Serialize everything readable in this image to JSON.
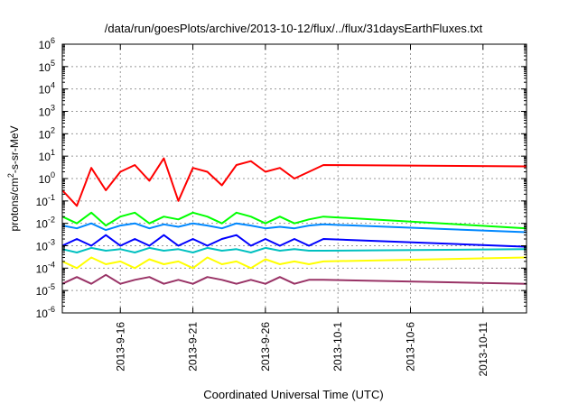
{
  "chart_data": {
    "type": "line",
    "title": "/data/run/goesPlots/archive/2013-10-12/flux/../flux/31daysEarthFluxes.txt",
    "xlabel": "Coordinated Universal Time (UTC)",
    "ylabel_prefix": "protons/cm",
    "ylabel_sup": "2",
    "ylabel_suffix": "-s-sr-MeV",
    "x_range": [
      "2013-09-12",
      "2013-10-14"
    ],
    "x_ticks": [
      {
        "date": "2013-09-16",
        "label": "2013-9-16"
      },
      {
        "date": "2013-09-21",
        "label": "2013-9-21"
      },
      {
        "date": "2013-09-26",
        "label": "2013-9-26"
      },
      {
        "date": "2013-10-01",
        "label": "2013-10-1"
      },
      {
        "date": "2013-10-06",
        "label": "2013-10-6"
      },
      {
        "date": "2013-10-11",
        "label": "2013-10-11"
      }
    ],
    "y_scale": "log",
    "ylim": [
      1e-06,
      1000000.0
    ],
    "y_ticks": [
      {
        "value": 1e-06,
        "base": "10",
        "exp": "-6"
      },
      {
        "value": 1e-05,
        "base": "10",
        "exp": "-5"
      },
      {
        "value": 0.0001,
        "base": "10",
        "exp": "-4"
      },
      {
        "value": 0.001,
        "base": "10",
        "exp": "-3"
      },
      {
        "value": 0.01,
        "base": "10",
        "exp": "-2"
      },
      {
        "value": 0.1,
        "base": "10",
        "exp": "-1"
      },
      {
        "value": 1,
        "base": "10",
        "exp": "0"
      },
      {
        "value": 10,
        "base": "10",
        "exp": "1"
      },
      {
        "value": 100,
        "base": "10",
        "exp": "2"
      },
      {
        "value": 1000,
        "base": "10",
        "exp": "3"
      },
      {
        "value": 10000,
        "base": "10",
        "exp": "4"
      },
      {
        "value": 100000,
        "base": "10",
        "exp": "5"
      },
      {
        "value": 1000000,
        "base": "10",
        "exp": "6"
      }
    ],
    "grid": true,
    "legend": "none",
    "series": [
      {
        "color": "#ff0000",
        "x": [
          "2013-09-12",
          "2013-09-13",
          "2013-09-14",
          "2013-09-15",
          "2013-09-16",
          "2013-09-17",
          "2013-09-18",
          "2013-09-19",
          "2013-09-20",
          "2013-09-21",
          "2013-09-22",
          "2013-09-23",
          "2013-09-24",
          "2013-09-25",
          "2013-09-26",
          "2013-09-27",
          "2013-09-28",
          "2013-09-29",
          "2013-09-30",
          "2013-10-14"
        ],
        "y": [
          0.3,
          0.06,
          3,
          0.3,
          2,
          4,
          0.8,
          8,
          0.1,
          3,
          2,
          0.5,
          4,
          6,
          2,
          3,
          1,
          2,
          4,
          3.5
        ]
      },
      {
        "color": "#00ff00",
        "x": [
          "2013-09-12",
          "2013-09-13",
          "2013-09-14",
          "2013-09-15",
          "2013-09-16",
          "2013-09-17",
          "2013-09-18",
          "2013-09-19",
          "2013-09-20",
          "2013-09-21",
          "2013-09-22",
          "2013-09-23",
          "2013-09-24",
          "2013-09-25",
          "2013-09-26",
          "2013-09-27",
          "2013-09-28",
          "2013-09-29",
          "2013-09-30",
          "2013-10-14"
        ],
        "y": [
          0.02,
          0.01,
          0.03,
          0.008,
          0.02,
          0.03,
          0.01,
          0.02,
          0.015,
          0.03,
          0.02,
          0.01,
          0.03,
          0.02,
          0.01,
          0.02,
          0.01,
          0.015,
          0.02,
          0.006
        ]
      },
      {
        "color": "#0088ff",
        "x": [
          "2013-09-12",
          "2013-09-13",
          "2013-09-14",
          "2013-09-15",
          "2013-09-16",
          "2013-09-17",
          "2013-09-18",
          "2013-09-19",
          "2013-09-20",
          "2013-09-21",
          "2013-09-22",
          "2013-09-23",
          "2013-09-24",
          "2013-09-25",
          "2013-09-26",
          "2013-09-27",
          "2013-09-28",
          "2013-09-29",
          "2013-09-30",
          "2013-10-14"
        ],
        "y": [
          0.008,
          0.006,
          0.01,
          0.005,
          0.008,
          0.01,
          0.006,
          0.009,
          0.007,
          0.01,
          0.008,
          0.006,
          0.01,
          0.008,
          0.006,
          0.007,
          0.006,
          0.008,
          0.009,
          0.004
        ]
      },
      {
        "color": "#0000ff",
        "x": [
          "2013-09-12",
          "2013-09-13",
          "2013-09-14",
          "2013-09-15",
          "2013-09-16",
          "2013-09-17",
          "2013-09-18",
          "2013-09-19",
          "2013-09-20",
          "2013-09-21",
          "2013-09-22",
          "2013-09-23",
          "2013-09-24",
          "2013-09-25",
          "2013-09-26",
          "2013-09-27",
          "2013-09-28",
          "2013-09-29",
          "2013-09-30",
          "2013-10-14"
        ],
        "y": [
          0.001,
          0.002,
          0.001,
          0.003,
          0.001,
          0.002,
          0.001,
          0.003,
          0.001,
          0.002,
          0.001,
          0.002,
          0.003,
          0.001,
          0.002,
          0.001,
          0.002,
          0.001,
          0.002,
          0.0009
        ]
      },
      {
        "color": "#00c0c0",
        "x": [
          "2013-09-12",
          "2013-09-13",
          "2013-09-14",
          "2013-09-15",
          "2013-09-16",
          "2013-09-17",
          "2013-09-18",
          "2013-09-19",
          "2013-09-20",
          "2013-09-21",
          "2013-09-22",
          "2013-09-23",
          "2013-09-24",
          "2013-09-25",
          "2013-09-26",
          "2013-09-27",
          "2013-09-28",
          "2013-09-29",
          "2013-09-30",
          "2013-10-14"
        ],
        "y": [
          0.0007,
          0.0005,
          0.0008,
          0.0006,
          0.0007,
          0.0005,
          0.0008,
          0.0006,
          0.0007,
          0.0005,
          0.0008,
          0.0006,
          0.0007,
          0.0005,
          0.0008,
          0.0006,
          0.0007,
          0.0006,
          0.0006,
          0.0007
        ]
      },
      {
        "color": "#ffff00",
        "x": [
          "2013-09-12",
          "2013-09-13",
          "2013-09-14",
          "2013-09-15",
          "2013-09-16",
          "2013-09-17",
          "2013-09-18",
          "2013-09-19",
          "2013-09-20",
          "2013-09-21",
          "2013-09-22",
          "2013-09-23",
          "2013-09-24",
          "2013-09-25",
          "2013-09-26",
          "2013-09-27",
          "2013-09-28",
          "2013-09-29",
          "2013-09-30",
          "2013-10-14"
        ],
        "y": [
          0.0002,
          0.0001,
          0.0003,
          0.00015,
          0.0002,
          0.0001,
          0.00025,
          0.00015,
          0.0002,
          0.0001,
          0.0003,
          0.00015,
          0.0002,
          0.0001,
          0.00025,
          0.00015,
          0.0002,
          0.00015,
          0.0002,
          0.0003
        ]
      },
      {
        "color": "#993366",
        "x": [
          "2013-09-12",
          "2013-09-13",
          "2013-09-14",
          "2013-09-15",
          "2013-09-16",
          "2013-09-17",
          "2013-09-18",
          "2013-09-19",
          "2013-09-20",
          "2013-09-21",
          "2013-09-22",
          "2013-09-23",
          "2013-09-24",
          "2013-09-25",
          "2013-09-26",
          "2013-09-27",
          "2013-09-28",
          "2013-09-29",
          "2013-09-30",
          "2013-10-14"
        ],
        "y": [
          2e-05,
          4e-05,
          2e-05,
          5e-05,
          2e-05,
          3e-05,
          4e-05,
          2e-05,
          3e-05,
          2e-05,
          4e-05,
          3e-05,
          2e-05,
          3e-05,
          2e-05,
          4e-05,
          2e-05,
          3e-05,
          3e-05,
          2e-05
        ]
      }
    ]
  }
}
